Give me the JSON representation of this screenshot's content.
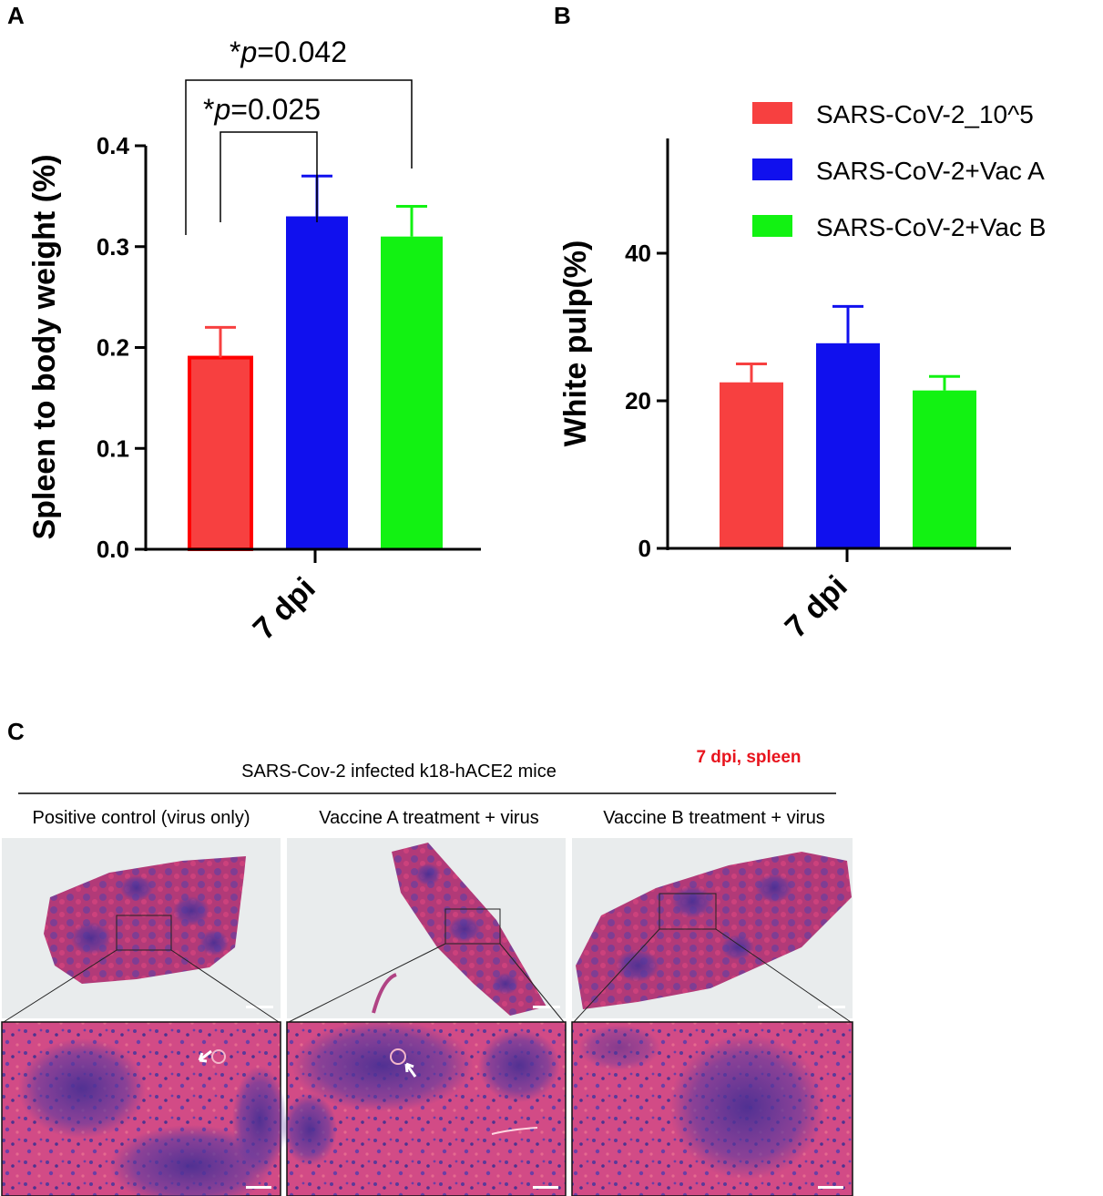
{
  "panels": {
    "a": "A",
    "b": "B",
    "c": "C"
  },
  "colors": {
    "red": "#f74040",
    "blue": "#1010ee",
    "green": "#12f212",
    "red_edge": "#ff0000"
  },
  "legend": [
    "SARS-CoV-2_10^5",
    "SARS-CoV-2+Vac A",
    "SARS-CoV-2+Vac B"
  ],
  "chart_data": [
    {
      "type": "bar",
      "panel": "A",
      "categories": [
        "7 dpi"
      ],
      "series": [
        {
          "name": "SARS-CoV-2_10^5",
          "values": [
            0.19
          ],
          "error": [
            0.03
          ]
        },
        {
          "name": "SARS-CoV-2+Vac A",
          "values": [
            0.33
          ],
          "error": [
            0.04
          ]
        },
        {
          "name": "SARS-CoV-2+Vac B",
          "values": [
            0.31
          ],
          "error": [
            0.03
          ]
        }
      ],
      "xlabel": "7 dpi",
      "ylabel": "Spleen to body weight (%)",
      "ylim": [
        0,
        0.4
      ],
      "yticks": [
        "0.0",
        "0.1",
        "0.2",
        "0.3",
        "0.4"
      ],
      "annotations": [
        {
          "star": "*",
          "p": "p",
          "rest": "=0.025",
          "from": 0,
          "to": 1
        },
        {
          "star": "*",
          "p": "p",
          "rest": "=0.042",
          "from": 0,
          "to": 2
        }
      ]
    },
    {
      "type": "bar",
      "panel": "B",
      "categories": [
        "7 dpi"
      ],
      "series": [
        {
          "name": "SARS-CoV-2_10^5",
          "values": [
            22.5
          ],
          "error": [
            2.5
          ]
        },
        {
          "name": "SARS-CoV-2+Vac A",
          "values": [
            27.8
          ],
          "error": [
            5.0
          ]
        },
        {
          "name": "SARS-CoV-2+Vac B",
          "values": [
            21.4
          ],
          "error": [
            1.9
          ]
        }
      ],
      "xlabel": "7 dpi",
      "ylabel": "White pulp(%)",
      "ylim": [
        0,
        56
      ],
      "yticks": [
        "0",
        "20",
        "40"
      ],
      "legend_position": "top-right"
    }
  ],
  "panel_c": {
    "header": "SARS-Cov-2 infected k18-hACE2 mice",
    "tag": "7 dpi, spleen",
    "columns": [
      "Positive control (virus only)",
      "Vaccine A treatment + virus",
      "Vaccine B treatment + virus"
    ]
  }
}
